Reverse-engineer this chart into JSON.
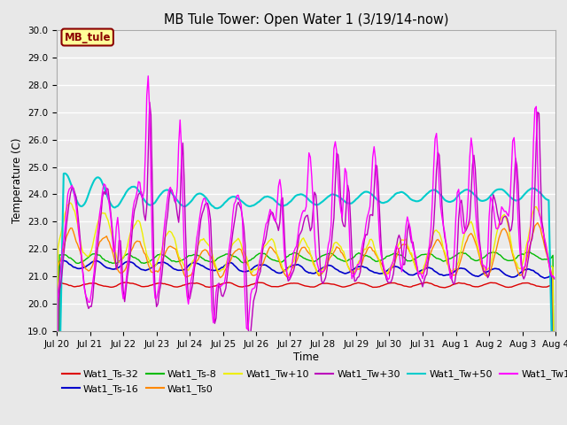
{
  "title": "MB Tule Tower: Open Water 1 (3/19/14-now)",
  "xlabel": "Time",
  "ylabel": "Temperature (C)",
  "ylim": [
    19.0,
    30.0
  ],
  "yticks": [
    19.0,
    20.0,
    21.0,
    22.0,
    23.0,
    24.0,
    25.0,
    26.0,
    27.0,
    28.0,
    29.0,
    30.0
  ],
  "bg_color": "#e8e8e8",
  "plot_bg_color": "#ebebeb",
  "legend_label": "MB_tule",
  "series_colors": {
    "Wat1_Ts-32": "#dd0000",
    "Wat1_Ts-16": "#0000cc",
    "Wat1_Ts-8": "#00bb00",
    "Wat1_Ts0": "#ff8800",
    "Wat1_Tw+10": "#eeee00",
    "Wat1_Tw+30": "#bb00bb",
    "Wat1_Tw+50": "#00cccc",
    "Wat1_Tw100": "#ff00ff"
  },
  "x_labels": [
    "Jul 20",
    "Jul 21",
    "Jul 22",
    "Jul 23",
    "Jul 24",
    "Jul 25",
    "Jul 26",
    "Jul 27",
    "Jul 28",
    "Jul 29",
    "Jul 30",
    "Jul 31",
    "Aug 1",
    "Aug 2",
    "Aug 3",
    "Aug 4"
  ],
  "n_days": 15,
  "pts_per_day": 24
}
